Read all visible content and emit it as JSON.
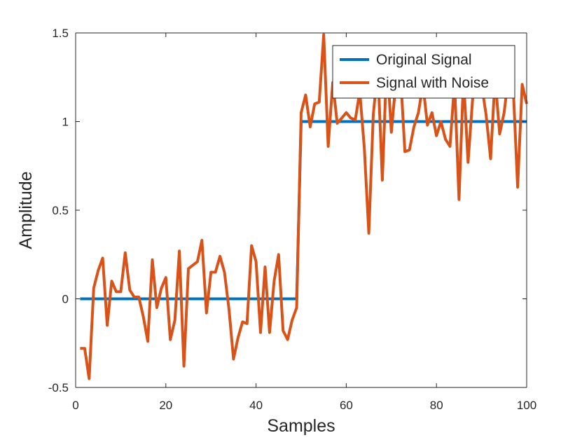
{
  "chart_data": {
    "type": "line",
    "title": "",
    "xlabel": "Samples",
    "ylabel": "Amplitude",
    "xlim": [
      0,
      100
    ],
    "ylim": [
      -0.5,
      1.5
    ],
    "xticks": [
      0,
      20,
      40,
      60,
      80,
      100
    ],
    "xtick_labels": [
      "0",
      "20",
      "40",
      "60",
      "80",
      "100"
    ],
    "yticks": [
      -0.5,
      0,
      0.5,
      1,
      1.5
    ],
    "ytick_labels": [
      "-0.5",
      "0",
      "0.5",
      "1",
      "1.5"
    ],
    "grid": false,
    "legend_position": "top-right",
    "series": [
      {
        "name": "Original Signal",
        "color": "#0072BD",
        "x": [
          1,
          49,
          50,
          100
        ],
        "y": [
          0,
          0,
          1,
          1
        ]
      },
      {
        "name": "Signal with Noise",
        "color": "#D95319",
        "x": [
          1,
          2,
          3,
          4,
          5,
          6,
          7,
          8,
          9,
          10,
          11,
          12,
          13,
          14,
          15,
          16,
          17,
          18,
          19,
          20,
          21,
          22,
          23,
          24,
          25,
          26,
          27,
          28,
          29,
          30,
          31,
          32,
          33,
          34,
          35,
          36,
          37,
          38,
          39,
          40,
          41,
          42,
          43,
          44,
          45,
          46,
          47,
          48,
          49,
          50,
          51,
          52,
          53,
          54,
          55,
          56,
          57,
          58,
          59,
          60,
          61,
          62,
          63,
          64,
          65,
          66,
          67,
          68,
          69,
          70,
          71,
          72,
          73,
          74,
          75,
          76,
          77,
          78,
          79,
          80,
          81,
          82,
          83,
          84,
          85,
          86,
          87,
          88,
          89,
          90,
          91,
          92,
          93,
          94,
          95,
          96,
          97,
          98,
          99,
          100
        ],
        "y": [
          -0.28,
          -0.28,
          -0.45,
          0.06,
          0.16,
          0.23,
          -0.15,
          0.1,
          0.04,
          0.04,
          0.26,
          0.05,
          0.01,
          0.01,
          -0.1,
          -0.24,
          0.22,
          -0.05,
          0.06,
          0.12,
          -0.23,
          -0.12,
          0.27,
          -0.38,
          0.17,
          0.19,
          0.21,
          0.33,
          -0.08,
          0.15,
          0.15,
          0.24,
          0.15,
          -0.06,
          -0.34,
          -0.22,
          -0.13,
          -0.14,
          0.3,
          0.21,
          -0.19,
          0.18,
          -0.19,
          0.1,
          0.25,
          -0.18,
          -0.23,
          -0.12,
          -0.05,
          1.05,
          1.15,
          0.97,
          1.1,
          1.11,
          1.49,
          0.86,
          1.22,
          0.99,
          1.02,
          1.05,
          1.02,
          1.01,
          1.17,
          0.85,
          0.37,
          1.04,
          1.3,
          0.67,
          1.36,
          0.94,
          1.22,
          1.28,
          0.83,
          0.84,
          0.97,
          1.05,
          1.21,
          0.98,
          1.05,
          0.92,
          1.0,
          0.9,
          0.86,
          1.22,
          0.56,
          1.25,
          0.77,
          1.12,
          1.4,
          1.21,
          1.04,
          0.79,
          1.25,
          0.93,
          1.05,
          1.26,
          1.2,
          0.63,
          1.21,
          1.1
        ]
      }
    ]
  }
}
